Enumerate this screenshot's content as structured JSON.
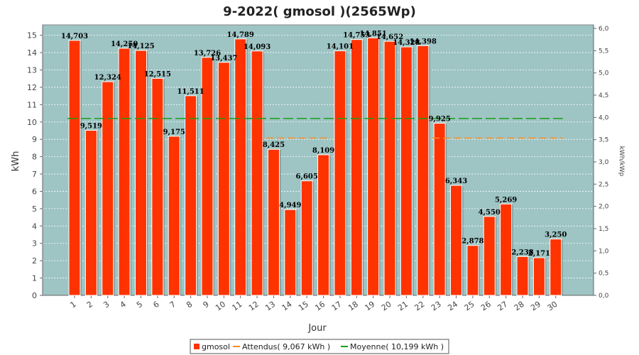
{
  "chart_data": {
    "type": "bar",
    "title": "9-2022( gmosol )(2565Wp)",
    "xlabel": "Jour",
    "ylabel": "kWh",
    "y2label": "kWh/kWp",
    "ylim": [
      0,
      15.6
    ],
    "y2lim": [
      0,
      6.08
    ],
    "yticks": [
      0,
      1,
      2,
      3,
      4,
      5,
      6,
      7,
      8,
      9,
      10,
      11,
      12,
      13,
      14,
      15
    ],
    "y2ticks": [
      "0,0",
      "0,5",
      "1,0",
      "1,5",
      "2,0",
      "2,5",
      "3,0",
      "3,5",
      "4,0",
      "4,5",
      "5,0",
      "5,5",
      "6,0"
    ],
    "grid": true,
    "categories": [
      "1",
      "2",
      "3",
      "4",
      "5",
      "6",
      "7",
      "8",
      "9",
      "10",
      "11",
      "12",
      "13",
      "14",
      "15",
      "16",
      "17",
      "18",
      "19",
      "20",
      "21",
      "22",
      "23",
      "24",
      "25",
      "26",
      "27",
      "28",
      "29",
      "30"
    ],
    "series": [
      {
        "name": "gmosol",
        "color": "#ff3300",
        "values": [
          14.703,
          9.519,
          12.324,
          14.25,
          14.125,
          12.515,
          9.175,
          11.511,
          13.726,
          13.437,
          14.789,
          14.093,
          8.425,
          4.949,
          6.605,
          8.109,
          14.101,
          14.753,
          14.851,
          14.652,
          14.328,
          14.398,
          9.925,
          6.343,
          2.878,
          4.55,
          5.269,
          2.238,
          2.171,
          3.25
        ],
        "labels": [
          "14,703",
          "9,519",
          "12,324",
          "14,250",
          "14,125",
          "12,515",
          "9,175",
          "11,511",
          "13,726",
          "13,437",
          "14,789",
          "14,093",
          "8,425",
          "4,949",
          "6,605",
          "8,109",
          "14,101",
          "14,753",
          "14,851",
          "14,652",
          "14,328",
          "14,398",
          "9,925",
          "6,343",
          "2,878",
          "4,550",
          "5,269",
          "2,238",
          "2,171",
          "3,250"
        ]
      }
    ],
    "expected": {
      "name": "Attendus( 9,067 kWh )",
      "color": "#ff8c1a",
      "segments": [
        {
          "from": 13,
          "to": 16,
          "value": 9.067
        },
        {
          "from": 23,
          "to": 30,
          "value": 9.067
        }
      ]
    },
    "average": {
      "name": "Moyenne( 10,199 kWh )",
      "color": "#1a9c1a",
      "value": 10.199
    },
    "legend": {
      "position": "bottom",
      "items": [
        {
          "label": "gmosol",
          "color": "#ff3300"
        },
        {
          "label": "Attendus( 9,067 kWh )",
          "color": "#ff8c1a"
        },
        {
          "label": "Moyenne( 10,199 kWh )",
          "color": "#1a9c1a"
        }
      ]
    },
    "colors": {
      "plot_background": "#9ec4c4",
      "bar": "#ff3300"
    }
  }
}
